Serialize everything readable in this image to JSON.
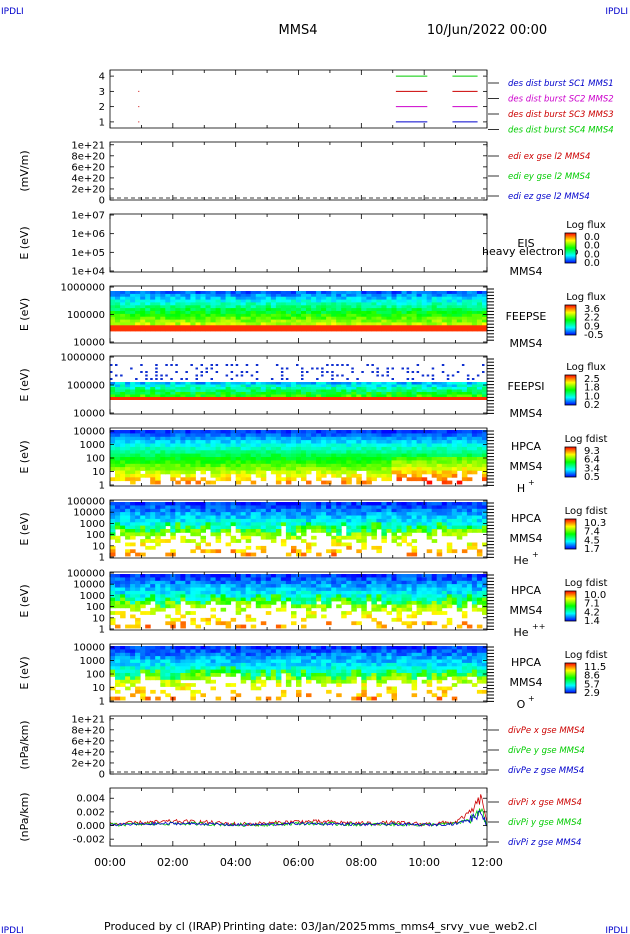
{
  "header": {
    "corner_tl": "IPDLI",
    "corner_tr": "IPDLI",
    "corner_bl": "IPDLI",
    "corner_br": "IPDLI",
    "spacecraft": "MMS4",
    "datetime": "10/Jun/2022 00:00"
  },
  "footer": {
    "produced_by": "Produced by cl (IRAP)",
    "printing_date": "Printing date: 03/Jan/2025",
    "filename": "mms_mms4_srvy_vue_web2.cl"
  },
  "colors": {
    "blue": "#0000cc",
    "magenta": "#cc00cc",
    "red": "#cc0000",
    "green": "#00cc00"
  },
  "chart_data": [
    {
      "type": "line",
      "id": "burst",
      "y_ticks": [
        "1",
        "2",
        "3",
        "4"
      ],
      "ylim": [
        0.6,
        4.4
      ],
      "legend": [
        {
          "name": "des dist burst SC1 MMS1",
          "color": "#0000cc"
        },
        {
          "name": "des dist burst SC2 MMS2",
          "color": "#cc00cc"
        },
        {
          "name": "des dist burst SC3 MMS3",
          "color": "#cc0000"
        },
        {
          "name": "des dist burst SC4 MMS4",
          "color": "#00cc00"
        }
      ],
      "series": [
        {
          "color": "#00cc00",
          "y": 4,
          "segments": [
            [
              9.1,
              10.1
            ],
            [
              10.9,
              11.7
            ]
          ]
        },
        {
          "color": "#cc0000",
          "y": 3,
          "segments": [
            [
              9.1,
              10.1
            ],
            [
              10.9,
              11.7
            ]
          ]
        },
        {
          "color": "#cc00cc",
          "y": 2,
          "segments": [
            [
              9.1,
              10.1
            ],
            [
              10.9,
              11.7
            ]
          ]
        },
        {
          "color": "#0000cc",
          "y": 1,
          "segments": [
            [
              9.1,
              10.1
            ],
            [
              10.9,
              11.7
            ]
          ]
        }
      ],
      "dots": [
        [
          0.9,
          3
        ],
        [
          0.9,
          2
        ],
        [
          0.9,
          1
        ]
      ]
    },
    {
      "type": "line",
      "id": "edi",
      "ylabel": "(mV/m)",
      "y_ticks": [
        "0",
        "2e+20",
        "4e+20",
        "6e+20",
        "8e+20",
        "1e+21"
      ],
      "ylim": [
        0,
        1.05
      ],
      "dashed_zero": true,
      "legend": [
        {
          "name": "edi ex gse l2 MMS4",
          "color": "#cc0000"
        },
        {
          "name": "edi ey gse l2 MMS4",
          "color": "#00cc00"
        },
        {
          "name": "edi ez gse l2 MMS4",
          "color": "#0000cc"
        }
      ]
    },
    {
      "type": "heatmap",
      "id": "eis",
      "ylabel": "E (eV)",
      "y_ticks": [
        "1e+04",
        "1e+05",
        "1e+06",
        "1e+07"
      ],
      "ylim": [
        4,
        7
      ],
      "instrument": "EIS",
      "spacecraft": "MMS4",
      "overlay": "heavy electron to",
      "colorbar": {
        "title": "Log flux",
        "ticks": [
          "0.0",
          "0.0",
          "0.0",
          "0.0"
        ]
      }
    },
    {
      "type": "heatmap",
      "id": "feepse",
      "ylabel": "E (eV)",
      "y_ticks": [
        "10000",
        "100000",
        "1000000"
      ],
      "ylim": [
        4,
        6
      ],
      "instrument": "FEEPSE",
      "spacecraft": "MMS4",
      "colorbar": {
        "title": "Log flux",
        "ticks": [
          "3.6",
          "2.2",
          "0.9",
          "-0.5"
        ]
      }
    },
    {
      "type": "heatmap",
      "id": "feepsi",
      "ylabel": "E (eV)",
      "y_ticks": [
        "10000",
        "100000",
        "1000000"
      ],
      "ylim": [
        4,
        6
      ],
      "instrument": "FEEPSI",
      "spacecraft": "MMS4",
      "colorbar": {
        "title": "Log flux",
        "ticks": [
          "2.5",
          "1.8",
          "1.0",
          "0.2"
        ]
      }
    },
    {
      "type": "heatmap",
      "id": "hpca_h",
      "ylabel": "E (eV)",
      "y_ticks": [
        "1",
        "10",
        "100",
        "1000",
        "10000"
      ],
      "ylim": [
        0,
        4.5
      ],
      "instrument": "HPCA",
      "spacecraft": "MMS4",
      "species": "H",
      "charge": "+",
      "colorbar": {
        "title": "Log fdist",
        "ticks": [
          "9.3",
          "6.4",
          "3.4",
          "0.5"
        ]
      }
    },
    {
      "type": "heatmap",
      "id": "hpca_he1",
      "ylabel": "E (eV)",
      "y_ticks": [
        "1",
        "10",
        "100",
        "1000",
        "10000",
        "100000"
      ],
      "ylim": [
        0,
        5
      ],
      "instrument": "HPCA",
      "spacecraft": "MMS4",
      "species": "He",
      "charge": "+",
      "colorbar": {
        "title": "Log fdist",
        "ticks": [
          "10.3",
          "7.4",
          "4.5",
          "1.7"
        ]
      }
    },
    {
      "type": "heatmap",
      "id": "hpca_he2",
      "ylabel": "E (eV)",
      "y_ticks": [
        "1",
        "10",
        "100",
        "1000",
        "10000",
        "100000"
      ],
      "ylim": [
        0,
        5
      ],
      "instrument": "HPCA",
      "spacecraft": "MMS4",
      "species": "He",
      "charge": "++",
      "colorbar": {
        "title": "Log fdist",
        "ticks": [
          "10.0",
          "7.1",
          "4.2",
          "1.4"
        ]
      }
    },
    {
      "type": "heatmap",
      "id": "hpca_o",
      "ylabel": "E (eV)",
      "y_ticks": [
        "1",
        "10",
        "100",
        "1000",
        "10000"
      ],
      "ylim": [
        0,
        4.5
      ],
      "instrument": "HPCA",
      "spacecraft": "MMS4",
      "species": "O",
      "charge": "+",
      "colorbar": {
        "title": "Log fdist",
        "ticks": [
          "11.5",
          "8.6",
          "5.7",
          "2.9"
        ]
      }
    },
    {
      "type": "line",
      "id": "divpe",
      "ylabel": "(nPa/km)",
      "y_ticks": [
        "0",
        "2e+20",
        "4e+20",
        "6e+20",
        "8e+20",
        "1e+21"
      ],
      "ylim": [
        0,
        1.05
      ],
      "dashed_zero": true,
      "legend": [
        {
          "name": "divPe x gse MMS4",
          "color": "#cc0000"
        },
        {
          "name": "divPe y gse MMS4",
          "color": "#00cc00"
        },
        {
          "name": "divPe z gse MMS4",
          "color": "#0000cc"
        }
      ]
    },
    {
      "type": "line",
      "id": "divpi",
      "ylabel": "(nPa/km)",
      "y_ticks": [
        "-0.002",
        "0.000",
        "0.002",
        "0.004"
      ],
      "ylim": [
        -0.003,
        0.0055
      ],
      "legend": [
        {
          "name": "divPi x gse MMS4",
          "color": "#cc0000"
        },
        {
          "name": "divPi y gse MMS4",
          "color": "#00cc00"
        },
        {
          "name": "divPi z gse MMS4",
          "color": "#0000cc"
        }
      ],
      "trend": [
        [
          0,
          0.0002
        ],
        [
          1,
          0.0004
        ],
        [
          2,
          0.0006
        ],
        [
          3,
          0.0005
        ],
        [
          4,
          0.0002
        ],
        [
          5,
          0.0003
        ],
        [
          6,
          0.0006
        ],
        [
          7,
          0.0005
        ],
        [
          8,
          0.0003
        ],
        [
          9,
          0.0004
        ],
        [
          10,
          0.0002
        ],
        [
          11,
          0.0005
        ],
        [
          11.5,
          0.002
        ],
        [
          11.8,
          0.004
        ],
        [
          12,
          0.001
        ]
      ]
    }
  ],
  "x_axis": {
    "xlim": [
      0,
      12
    ],
    "ticks": [
      "00:00",
      "02:00",
      "04:00",
      "06:00",
      "08:00",
      "10:00",
      "12:00"
    ]
  }
}
